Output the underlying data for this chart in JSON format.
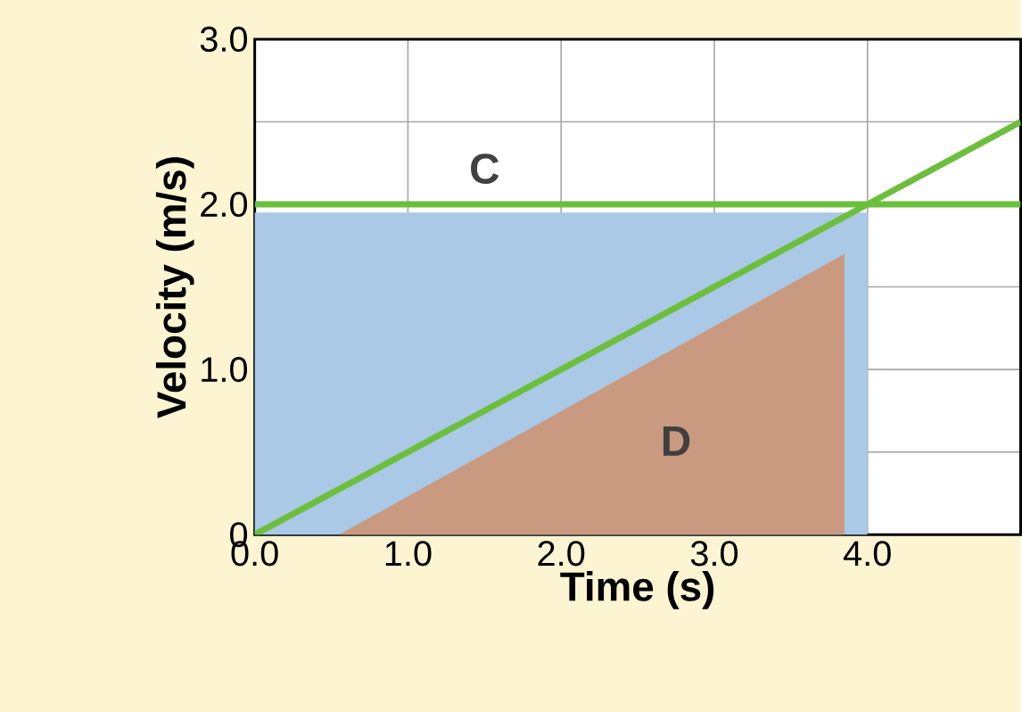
{
  "chart_data": {
    "type": "line",
    "xlabel": "Time (s)",
    "ylabel": "Velocity (m/s)",
    "xlim": [
      0,
      5
    ],
    "ylim": [
      0,
      3
    ],
    "xticks": [
      {
        "value": 0,
        "label": "0.0"
      },
      {
        "value": 1,
        "label": "1.0"
      },
      {
        "value": 2,
        "label": "2.0"
      },
      {
        "value": 3,
        "label": "3.0"
      },
      {
        "value": 4,
        "label": "4.0"
      }
    ],
    "yticks": [
      0,
      {
        "value": 0.5,
        "label": null
      },
      {
        "value": 1,
        "label": "1.0"
      },
      {
        "value": 1.5,
        "label": null
      },
      {
        "value": 2,
        "label": "2.0"
      },
      {
        "value": 2.5,
        "label": null
      },
      {
        "value": 3,
        "label": "3.0"
      }
    ],
    "grid": true,
    "series": [
      {
        "type": "area",
        "color": "#a9c9e6",
        "x": [
          0,
          4
        ],
        "values": [
          1.95,
          1.95
        ]
      },
      {
        "type": "area",
        "name": "D",
        "color": "#c99a80",
        "x": [
          0.55,
          3.85,
          3.85
        ],
        "values": [
          0,
          1.7,
          0
        ]
      },
      {
        "name": "C",
        "color": "#6cbf3c",
        "x": [
          0,
          5
        ],
        "values": [
          2,
          2
        ]
      },
      {
        "color": "#6cbf3c",
        "x": [
          0,
          5
        ],
        "values": [
          0,
          2.5
        ]
      }
    ]
  }
}
